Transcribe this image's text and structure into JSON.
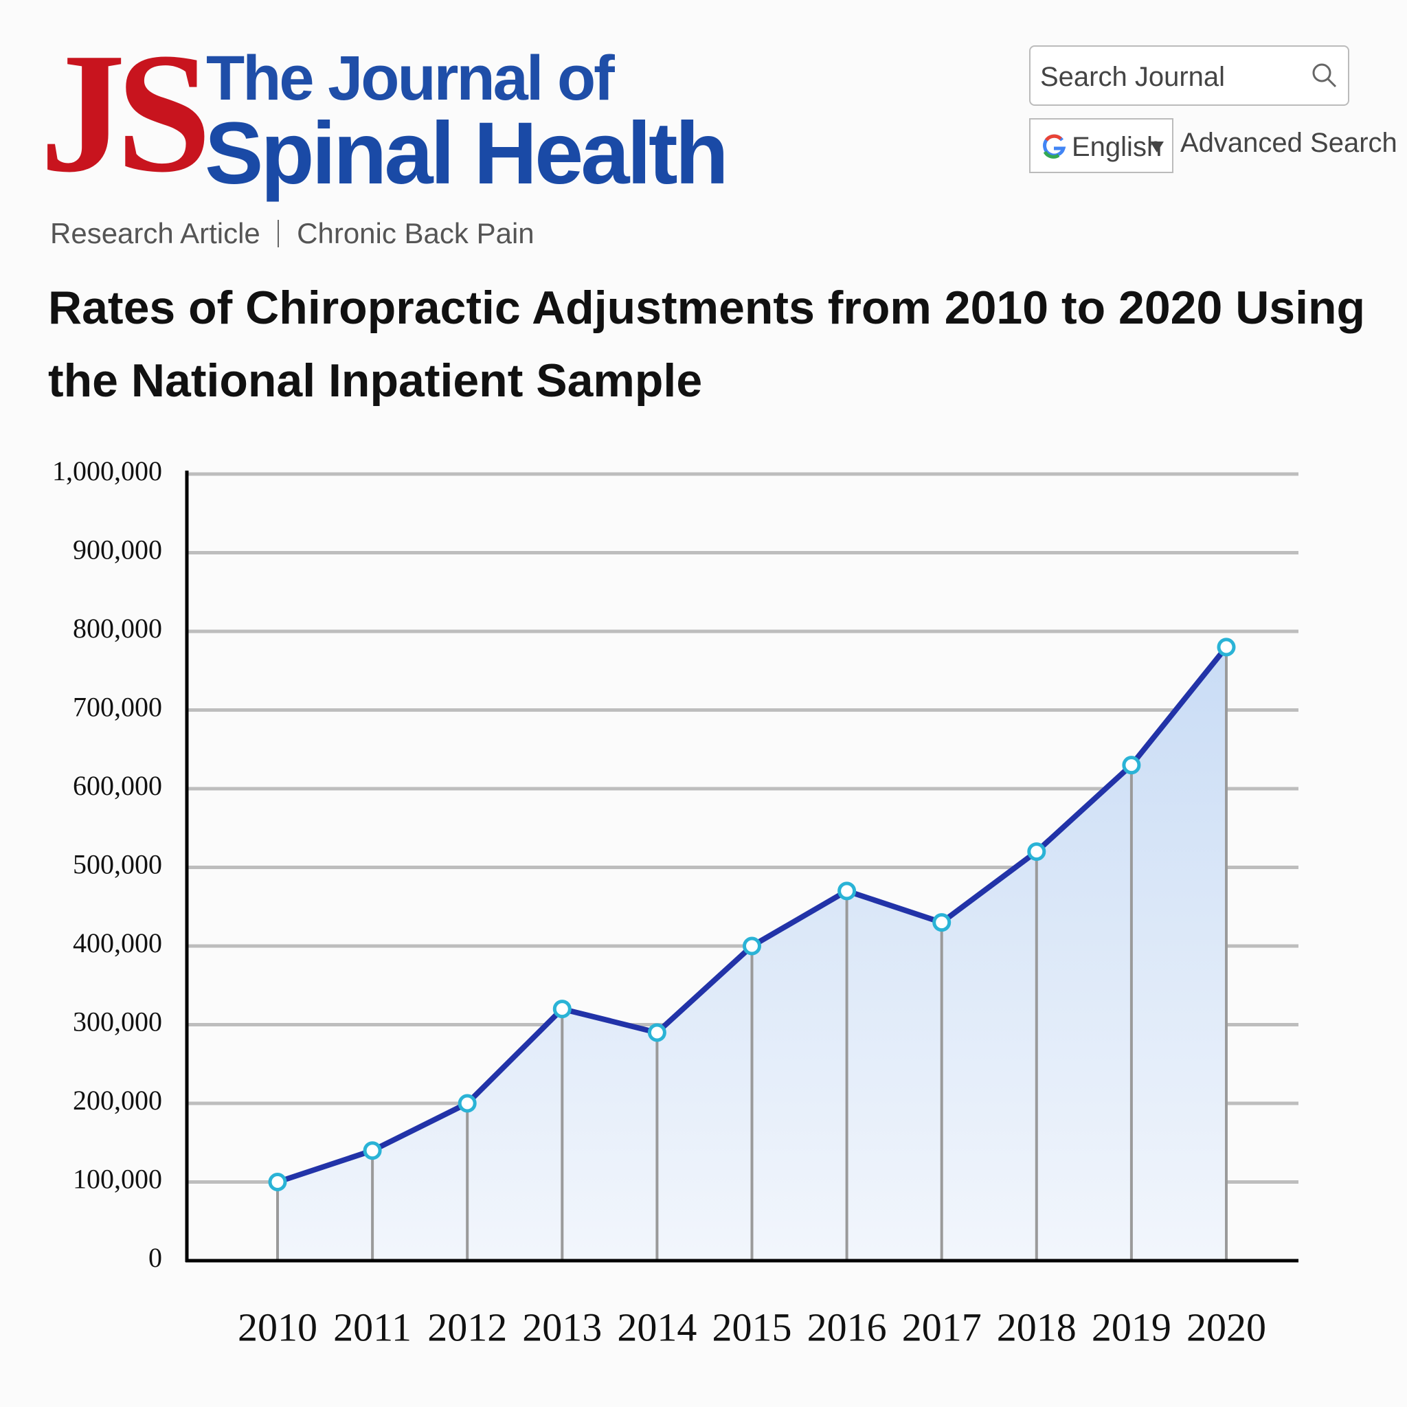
{
  "header": {
    "logo": "JS",
    "journal_line1": "The Journal of",
    "journal_line2": "Spinal Health",
    "search_placeholder": "Search Journal",
    "language": "English",
    "advanced_search": "Advanced Search",
    "breadcrumb": [
      "Research Article",
      "Chronic Back Pain"
    ]
  },
  "chart_data": {
    "type": "line",
    "title": "Rates of Chiropractic Adjustments from 2010 to 2020 Using the National Inpatient Sample",
    "categories": [
      "2010",
      "2011",
      "2012",
      "2013",
      "2014",
      "2015",
      "2016",
      "2017",
      "2018",
      "2019",
      "2020"
    ],
    "values": [
      100000,
      140000,
      200000,
      320000,
      290000,
      400000,
      470000,
      430000,
      520000,
      630000,
      780000
    ],
    "color": "#2233a8",
    "marker_color": "#2ab3d6",
    "area": true,
    "grid": true,
    "ylim": [
      0,
      1000000
    ],
    "yticks": [
      0,
      {
        "value": 100000,
        "label": "100,000"
      },
      {
        "value": 200000,
        "label": "200,000"
      },
      {
        "value": 300000,
        "label": "300,000"
      },
      {
        "value": 400000,
        "label": "400,000"
      },
      {
        "value": 500000,
        "label": "500,000"
      },
      {
        "value": 600000,
        "label": "600,000"
      },
      {
        "value": 700000,
        "label": "700,000"
      },
      {
        "value": 800000,
        "label": "800,000"
      },
      {
        "value": 900000,
        "label": "900,000"
      },
      {
        "value": 1000000,
        "label": "1,000,000"
      }
    ]
  }
}
